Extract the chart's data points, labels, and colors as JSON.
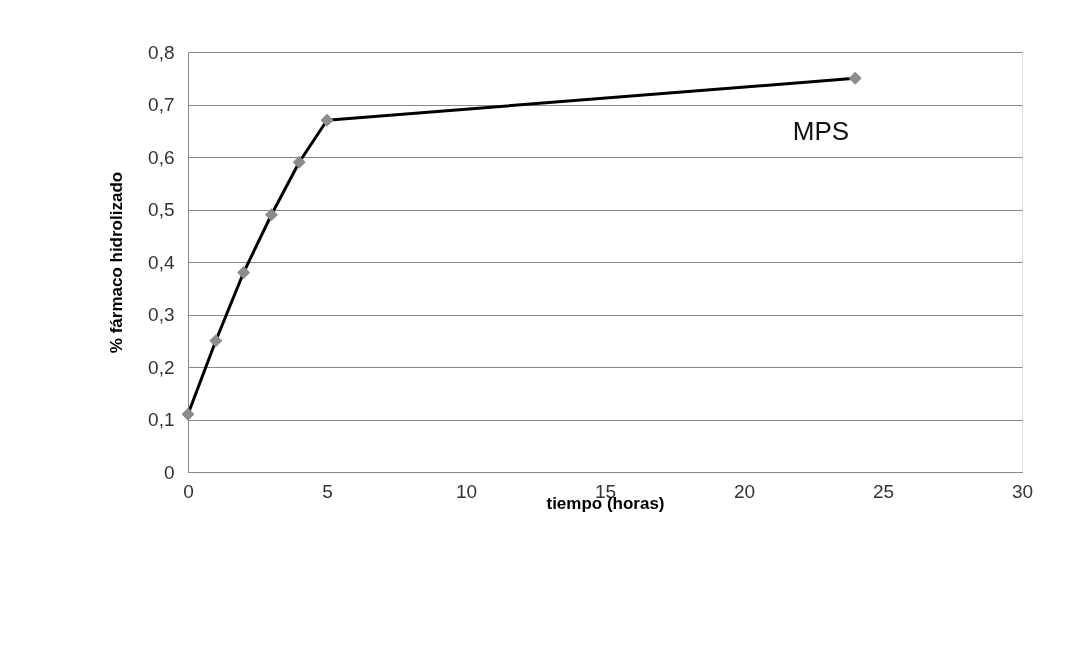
{
  "chart_data": {
    "type": "line",
    "xlabel": "tiempo (horas)",
    "ylabel": "% fármaco hidrolizado",
    "x": [
      0,
      1,
      2,
      3,
      4,
      5,
      24
    ],
    "series": [
      {
        "name": "MPS",
        "color": "#000000",
        "values": [
          0.11,
          0.25,
          0.38,
          0.49,
          0.59,
          0.67,
          0.75
        ]
      }
    ],
    "xlim": [
      0,
      30
    ],
    "xticks": [
      0,
      5,
      10,
      15,
      20,
      25,
      30
    ],
    "ylim": [
      0,
      0.8
    ],
    "yticks": [
      0,
      {
        "value": 0.1,
        "label": "0,1"
      },
      {
        "value": 0.2,
        "label": "0,2"
      },
      {
        "value": 0.3,
        "label": "0,3"
      },
      {
        "value": 0.4,
        "label": "0,4"
      },
      {
        "value": 0.5,
        "label": "0,5"
      },
      {
        "value": 0.6,
        "label": "0,6"
      },
      {
        "value": 0.7,
        "label": "0,7"
      },
      {
        "value": 0.8,
        "label": "0,8"
      }
    ],
    "grid": "y",
    "marker": "diamond",
    "line_style": "solid"
  }
}
